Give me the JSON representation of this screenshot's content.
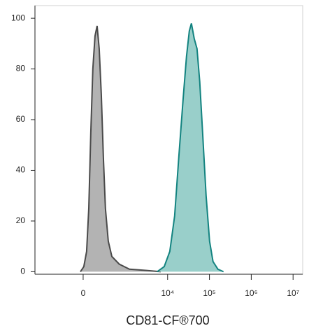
{
  "chart_data": {
    "type": "area",
    "x_label": "CD81-CF®700",
    "x_scale": "biexponential",
    "xlim": [
      -1350,
      17000000
    ],
    "ylim": [
      -1,
      105
    ],
    "xticks": [
      0,
      {
        "value": 10000,
        "label": "10⁴"
      },
      {
        "value": 100000,
        "label": "10⁵"
      },
      {
        "value": 1000000,
        "label": "10⁶"
      },
      {
        "value": 10000000,
        "label": "10⁷"
      }
    ],
    "yticks": [
      0,
      20,
      40,
      60,
      80,
      100
    ],
    "series": [
      {
        "color": "#b3b3b3",
        "line_color": "#4a4a4a",
        "x": [
          -29,
          7,
          37,
          60,
          83,
          107,
          134,
          162,
          192,
          224,
          260,
          297,
          357,
          445,
          683,
          1210,
          3160,
          6830
        ],
        "values": [
          0,
          2,
          8,
          25,
          55,
          80,
          93,
          97,
          88,
          70,
          45,
          25,
          12,
          6,
          3,
          1,
          0.5,
          0
        ]
      },
      {
        "color": "#99cfca",
        "line_color": "#138380",
        "x": [
          5600,
          8300,
          11300,
          14700,
          18500,
          23400,
          28300,
          33000,
          37100,
          43300,
          50400,
          58700,
          68600,
          83100,
          100700,
          122000,
          159500,
          217000
        ],
        "values": [
          0,
          2,
          8,
          22,
          45,
          68,
          85,
          95,
          98,
          92,
          88,
          75,
          55,
          30,
          12,
          4,
          1,
          0
        ]
      }
    ]
  }
}
